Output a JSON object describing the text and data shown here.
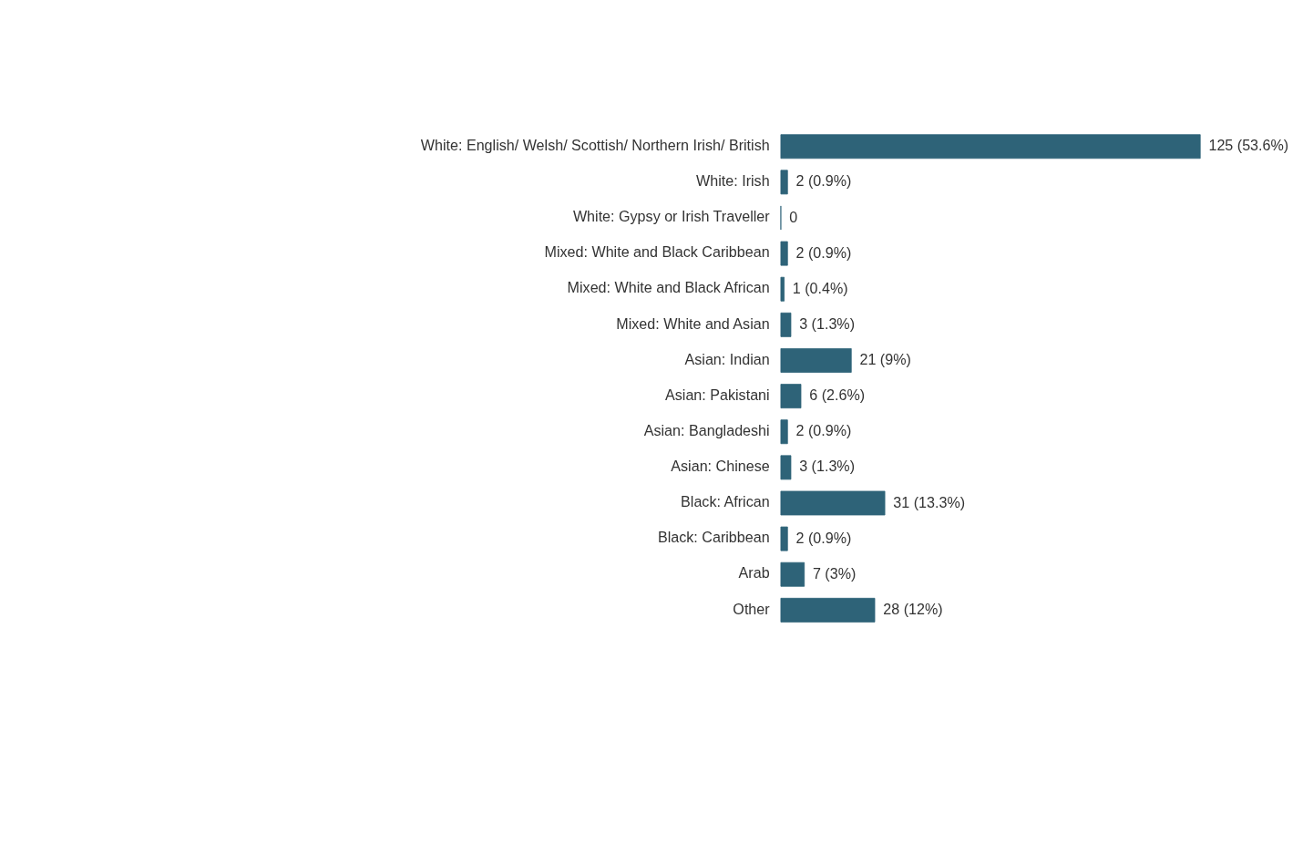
{
  "chart_data": {
    "type": "bar",
    "orientation": "horizontal",
    "categories": [
      "White: English/ Welsh/ Scottish/ Northern Irish/ British",
      "White: Irish",
      "White: Gypsy or Irish Traveller",
      "Mixed: White and Black Caribbean",
      "Mixed: White and Black African",
      "Mixed: White and Asian",
      "Asian: Indian",
      "Asian: Pakistani",
      "Asian: Bangladeshi",
      "Asian: Chinese",
      "Black: African",
      "Black: Caribbean",
      "Arab",
      "Other"
    ],
    "values": [
      125,
      2,
      0,
      2,
      1,
      3,
      21,
      6,
      2,
      3,
      31,
      2,
      7,
      28
    ],
    "value_labels": [
      "125 (53.6%)",
      "2 (0.9%)",
      "0",
      "2 (0.9%)",
      "1 (0.4%)",
      "3 (1.3%)",
      "21 (9%)",
      "6 (2.6%)",
      "2 (0.9%)",
      "3 (1.3%)",
      "31 (13.3%)",
      "2 (0.9%)",
      "7 (3%)",
      "28 (12%)"
    ],
    "color": "#2e6378"
  }
}
